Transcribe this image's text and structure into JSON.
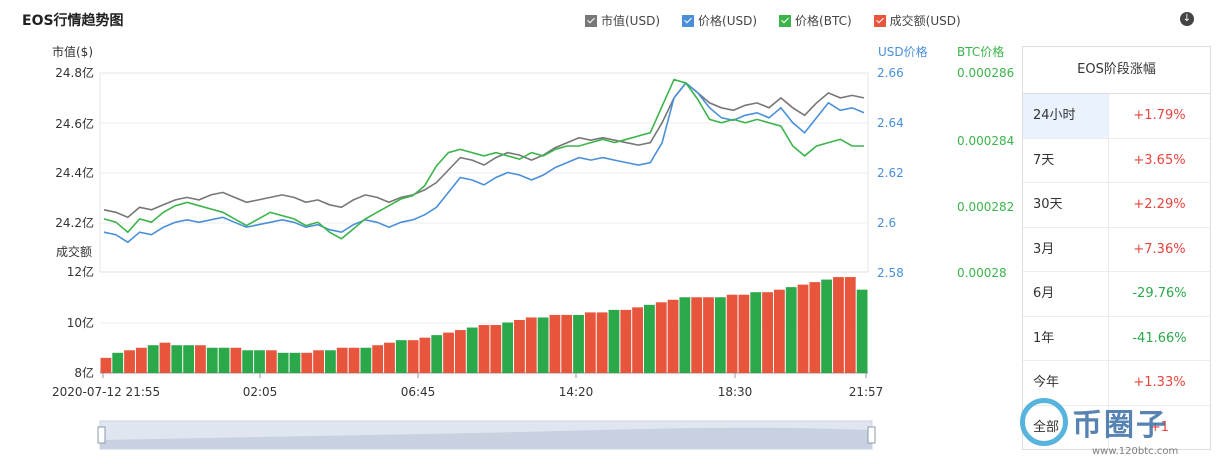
{
  "header": {
    "title": "EOS行情趋势图"
  },
  "legend": [
    {
      "label": "市值(USD)",
      "color": "#777777"
    },
    {
      "label": "价格(USD)",
      "color": "#4a90d9"
    },
    {
      "label": "价格(BTC)",
      "color": "#3cb44b"
    },
    {
      "label": "成交额(USD)",
      "color": "#e8553d"
    }
  ],
  "download_icon": "download-icon",
  "chart_data": {
    "type": "line",
    "axes": {
      "left_label": "市值($)",
      "left_ticks": [
        "24.8亿",
        "24.6亿",
        "24.4亿",
        "24.2亿"
      ],
      "left_range": [
        24.0,
        24.8
      ],
      "usd_label": "USD价格",
      "usd_ticks": [
        "2.66",
        "2.64",
        "2.62",
        "2.6",
        "2.58"
      ],
      "usd_range": [
        2.58,
        2.66
      ],
      "btc_label": "BTC价格",
      "btc_ticks": [
        "0.000286",
        "0.000284",
        "0.000282",
        "0.00028"
      ],
      "btc_range": [
        0.00028,
        0.000286
      ],
      "volume_label": "成交额",
      "volume_ticks": [
        "12亿",
        "10亿",
        "8亿"
      ],
      "volume_range": [
        8,
        12
      ],
      "x_ticks": [
        "2020-07-12 21:55",
        "02:05",
        "06:45",
        "14:20",
        "18:30",
        "21:57"
      ]
    },
    "series": [
      {
        "name": "市值(USD)",
        "color": "#777777",
        "values": [
          24.25,
          24.24,
          24.22,
          24.26,
          24.25,
          24.27,
          24.29,
          24.3,
          24.29,
          24.31,
          24.32,
          24.3,
          24.28,
          24.29,
          24.3,
          24.31,
          24.3,
          24.28,
          24.29,
          24.27,
          24.26,
          24.29,
          24.31,
          24.3,
          24.28,
          24.3,
          24.31,
          24.33,
          24.36,
          24.41,
          24.46,
          24.45,
          24.43,
          24.46,
          24.48,
          24.47,
          24.45,
          24.47,
          24.5,
          24.52,
          24.54,
          24.53,
          24.54,
          24.53,
          24.52,
          24.51,
          24.52,
          24.6,
          24.7,
          24.76,
          24.72,
          24.68,
          24.66,
          24.65,
          24.67,
          24.68,
          24.66,
          24.7,
          24.66,
          24.63,
          24.68,
          24.72,
          24.7,
          24.71,
          24.7
        ]
      },
      {
        "name": "价格(USD)",
        "color": "#4a90d9",
        "values": [
          2.596,
          2.595,
          2.592,
          2.596,
          2.595,
          2.598,
          2.6,
          2.601,
          2.6,
          2.601,
          2.602,
          2.6,
          2.598,
          2.599,
          2.6,
          2.601,
          2.6,
          2.598,
          2.599,
          2.597,
          2.596,
          2.599,
          2.601,
          2.6,
          2.598,
          2.6,
          2.601,
          2.603,
          2.606,
          2.612,
          2.618,
          2.617,
          2.615,
          2.618,
          2.62,
          2.619,
          2.617,
          2.619,
          2.622,
          2.624,
          2.626,
          2.625,
          2.626,
          2.625,
          2.624,
          2.623,
          2.624,
          2.632,
          2.65,
          2.656,
          2.652,
          2.646,
          2.642,
          2.641,
          2.643,
          2.644,
          2.642,
          2.646,
          2.64,
          2.636,
          2.642,
          2.648,
          2.645,
          2.646,
          2.644
        ]
      },
      {
        "name": "价格(BTC)",
        "color": "#3cb44b",
        "values": [
          0.0002816,
          0.0002815,
          0.0002812,
          0.0002816,
          0.0002815,
          0.0002818,
          0.000282,
          0.0002821,
          0.000282,
          0.0002819,
          0.0002818,
          0.0002816,
          0.0002814,
          0.0002816,
          0.0002818,
          0.0002817,
          0.0002816,
          0.0002814,
          0.0002815,
          0.0002812,
          0.000281,
          0.0002813,
          0.0002816,
          0.0002818,
          0.000282,
          0.0002822,
          0.0002823,
          0.0002826,
          0.0002832,
          0.0002836,
          0.0002837,
          0.0002836,
          0.0002835,
          0.0002836,
          0.0002835,
          0.0002834,
          0.0002836,
          0.0002835,
          0.0002837,
          0.0002838,
          0.0002838,
          0.0002839,
          0.000284,
          0.0002839,
          0.000284,
          0.0002841,
          0.0002842,
          0.000285,
          0.0002858,
          0.0002857,
          0.0002852,
          0.0002846,
          0.0002845,
          0.0002846,
          0.0002845,
          0.0002846,
          0.0002845,
          0.0002844,
          0.0002838,
          0.0002835,
          0.0002838,
          0.0002839,
          0.000284,
          0.0002838,
          0.0002838
        ]
      },
      {
        "name": "成交额(USD)",
        "color": "#e8553d",
        "values": [
          8.6,
          8.8,
          8.9,
          9.0,
          9.1,
          9.2,
          9.1,
          9.1,
          9.1,
          9.0,
          9.0,
          9.0,
          8.9,
          8.9,
          8.9,
          8.8,
          8.8,
          8.8,
          8.9,
          8.9,
          9.0,
          9.0,
          9.0,
          9.1,
          9.2,
          9.3,
          9.3,
          9.4,
          9.5,
          9.6,
          9.7,
          9.8,
          9.9,
          9.9,
          10.0,
          10.1,
          10.2,
          10.2,
          10.3,
          10.3,
          10.3,
          10.4,
          10.4,
          10.5,
          10.5,
          10.6,
          10.7,
          10.8,
          10.9,
          11.0,
          11.0,
          11.0,
          11.0,
          11.1,
          11.1,
          11.2,
          11.2,
          11.3,
          11.4,
          11.5,
          11.6,
          11.7,
          11.8,
          11.8,
          11.3
        ]
      }
    ]
  },
  "panel": {
    "title": "EOS阶段涨幅",
    "rows": [
      {
        "period": "24小时",
        "change": "+1.79%",
        "dir": "up",
        "selected": true
      },
      {
        "period": "7天",
        "change": "+3.65%",
        "dir": "up"
      },
      {
        "period": "30天",
        "change": "+2.29%",
        "dir": "up"
      },
      {
        "period": "3月",
        "change": "+7.36%",
        "dir": "up"
      },
      {
        "period": "6月",
        "change": "-29.76%",
        "dir": "down"
      },
      {
        "period": "1年",
        "change": "-41.66%",
        "dir": "down"
      },
      {
        "period": "今年",
        "change": "+1.33%",
        "dir": "up"
      },
      {
        "period": "全部",
        "change": "+1",
        "dir": "up"
      }
    ]
  },
  "watermark": {
    "brand": "币圈子",
    "url": "www.120btc.com"
  }
}
